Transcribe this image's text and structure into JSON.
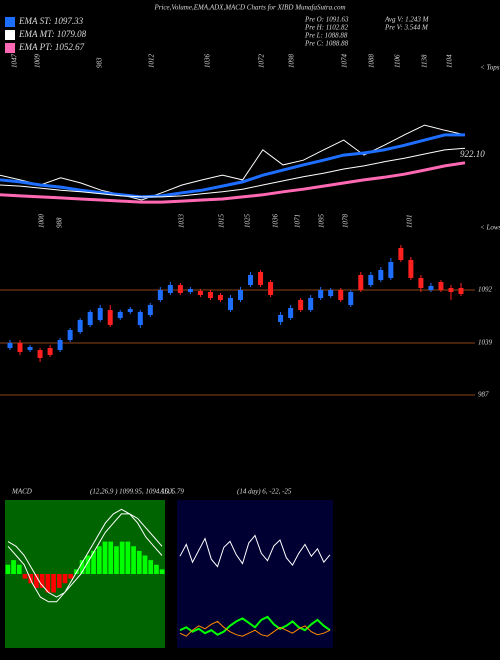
{
  "title": "Price,Volume,EMA,ADX,MACD Charts for XIBD MunafaSutra.com",
  "chart_data": [
    {
      "type": "line",
      "info": [
        "Pre O: 1091.63",
        "Pre H: 1102.82",
        "Pre L: 1088.88",
        "Pre C: 1088.88",
        "Avg V: 1.243 M",
        "Pre V: 3.544 M"
      ],
      "tops": [
        "1047",
        "1009",
        "983",
        "1012",
        "1036",
        "1072",
        "1098",
        "1074",
        "1088",
        "1106",
        "1138",
        "1104"
      ],
      "tops_label": "< Tops",
      "lows": [
        "1000",
        "988",
        "1033",
        "1015",
        "1025",
        "1036",
        "1071",
        "1095",
        "1078",
        "1101"
      ],
      "lows_label": "< Lows",
      "last_label": "922.10",
      "ylim": [
        850,
        1150
      ],
      "series": [
        {
          "color": "#ffffff",
          "values": [
            927,
            918,
            908,
            922,
            912,
            898,
            889,
            879,
            893,
            908,
            918,
            927,
            918,
            976,
            947,
            956,
            976,
            995,
            966,
            985,
            1005,
            1024,
            1014,
            1005
          ]
        },
        {
          "name": "EMA ST: 1097.33",
          "color": "#1e6fff",
          "values": [
            918,
            914,
            908,
            904,
            898,
            893,
            889,
            885,
            887,
            893,
            898,
            906,
            914,
            927,
            937,
            947,
            956,
            966,
            970,
            976,
            985,
            995,
            1005,
            1005
          ]
        },
        {
          "name": "EMA MT: 1079.08",
          "color": "#ffffff",
          "values": [
            908,
            906,
            902,
            898,
            895,
            891,
            887,
            885,
            885,
            887,
            891,
            895,
            900,
            908,
            916,
            924,
            931,
            939,
            945,
            953,
            960,
            968,
            976,
            979
          ]
        },
        {
          "name": "EMA PT: 1052.67",
          "color": "#ff69b4",
          "values": [
            889,
            887,
            885,
            883,
            881,
            879,
            877,
            875,
            875,
            877,
            879,
            881,
            885,
            889,
            895,
            900,
            906,
            912,
            918,
            923,
            929,
            937,
            945,
            951
          ]
        }
      ]
    },
    {
      "type": "candlestick",
      "ylim": [
        982,
        1142
      ],
      "yticks": [
        987,
        1039,
        1092
      ],
      "line_color": "#8b4513",
      "up_color": "#1e6fff",
      "down_color": "#ff2020",
      "open": [
        1034,
        1039,
        1032,
        1032,
        1034,
        1032,
        1042,
        1050,
        1057,
        1062,
        1072,
        1064,
        1070,
        1057,
        1067,
        1082,
        1089,
        1097,
        1090,
        1091,
        1090,
        1087,
        1072,
        1082,
        1097,
        1110,
        1100,
        1060,
        1064,
        1082,
        1072,
        1084,
        1086,
        1092,
        1077,
        1107,
        1097,
        1102,
        1104,
        1134,
        1122,
        1104,
        1092,
        1100,
        1094,
        1094
      ],
      "high": [
        1042,
        1042,
        1037,
        1034,
        1037,
        1044,
        1054,
        1064,
        1072,
        1077,
        1077,
        1072,
        1075,
        1072,
        1079,
        1095,
        1100,
        1099,
        1095,
        1093,
        1092,
        1089,
        1087,
        1095,
        1110,
        1112,
        1102,
        1070,
        1077,
        1084,
        1087,
        1095,
        1094,
        1094,
        1092,
        1110,
        1110,
        1115,
        1124,
        1137,
        1125,
        1107,
        1099,
        1102,
        1097,
        1099
      ],
      "low": [
        1032,
        1027,
        1030,
        1020,
        1025,
        1030,
        1040,
        1048,
        1055,
        1060,
        1055,
        1062,
        1068,
        1054,
        1065,
        1080,
        1087,
        1087,
        1088,
        1085,
        1082,
        1080,
        1070,
        1080,
        1095,
        1095,
        1085,
        1057,
        1062,
        1070,
        1070,
        1082,
        1084,
        1080,
        1075,
        1090,
        1095,
        1100,
        1102,
        1120,
        1102,
        1090,
        1090,
        1090,
        1082,
        1086
      ],
      "close": [
        1039,
        1030,
        1035,
        1024,
        1027,
        1042,
        1052,
        1062,
        1070,
        1074,
        1057,
        1070,
        1073,
        1070,
        1077,
        1092,
        1097,
        1089,
        1093,
        1087,
        1084,
        1082,
        1084,
        1092,
        1107,
        1097,
        1087,
        1067,
        1074,
        1072,
        1084,
        1092,
        1092,
        1082,
        1090,
        1092,
        1107,
        1112,
        1120,
        1122,
        1104,
        1094,
        1096,
        1092,
        1090,
        1088
      ]
    },
    {
      "type": "macd",
      "label": "MACD",
      "params": "(12,26,9 ) 1099.95, 1094.16, 5.79",
      "background": "#006400",
      "positive_color": "#00ff00",
      "negative_color": "#ff0000",
      "ylim": [
        -8,
        8
      ],
      "histogram": [
        1,
        1.5,
        1,
        -0.5,
        -1,
        -1.5,
        -1.5,
        -2,
        -2,
        -1.5,
        -1,
        -0.5,
        0.5,
        1.5,
        2,
        2.5,
        3,
        3.5,
        3.5,
        3,
        3.5,
        3.5,
        3,
        2.5,
        2,
        1.5,
        1,
        0.5
      ],
      "series": [
        {
          "color": "#ffffff",
          "values": [
            3,
            2,
            1,
            -1,
            -2.5,
            -3,
            -3,
            -2,
            -0.5,
            1,
            2.5,
            4,
            5.5,
            6.5,
            7,
            6.5,
            5.5,
            4,
            3,
            2
          ]
        },
        {
          "color": "#ffffff",
          "values": [
            3.5,
            3,
            2,
            0.5,
            -1,
            -2,
            -2.5,
            -2,
            -1,
            0,
            1.5,
            3,
            4.5,
            5.5,
            6.5,
            6.5,
            6,
            5,
            4,
            3
          ]
        }
      ]
    },
    {
      "type": "adx",
      "label": "ADX",
      "params": "(14 day) 6, -22, -25",
      "background": "#000033",
      "ylim": [
        0,
        100
      ],
      "series": [
        {
          "color": "#ffffff",
          "values": [
            62,
            70,
            58,
            66,
            74,
            60,
            55,
            68,
            72,
            63,
            57,
            71,
            76,
            64,
            59,
            69,
            73,
            61,
            56,
            64,
            70,
            62,
            67,
            58,
            63
          ]
        },
        {
          "color": "#00ff00",
          "values": [
            12,
            14,
            11,
            13,
            10,
            12,
            9,
            11,
            15,
            18,
            20,
            17,
            14,
            19,
            21,
            16,
            13,
            15,
            18,
            14,
            12,
            16,
            19,
            15,
            12
          ]
        },
        {
          "color": "#ff8c00",
          "values": [
            10,
            8,
            12,
            15,
            13,
            16,
            18,
            14,
            11,
            9,
            8,
            10,
            12,
            9,
            8,
            11,
            14,
            12,
            10,
            13,
            15,
            11,
            9,
            10,
            12
          ]
        }
      ]
    }
  ]
}
